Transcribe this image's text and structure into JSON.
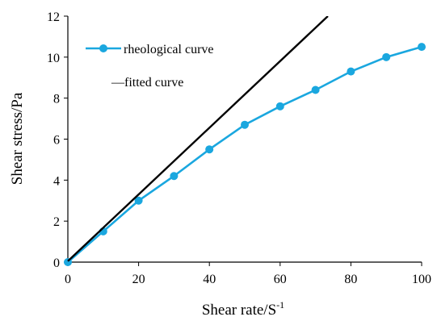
{
  "chart_data": {
    "type": "line",
    "xlabel": "Shear rate/S",
    "xlabel_sup": "-1",
    "ylabel": "Shear stress/Pa",
    "xlim": [
      0,
      100
    ],
    "ylim": [
      0,
      12
    ],
    "x_ticks": [
      0,
      20,
      40,
      60,
      80,
      100
    ],
    "y_ticks": [
      0,
      2,
      4,
      6,
      8,
      10,
      12
    ],
    "grid": false,
    "legend_position": "top-left",
    "series": [
      {
        "name": "rheological curve",
        "color": "#1aa7df",
        "marker": "circle",
        "x": [
          0,
          10,
          20,
          30,
          40,
          50,
          60,
          70,
          80,
          90,
          100
        ],
        "y": [
          0,
          1.5,
          3.0,
          4.2,
          5.5,
          6.7,
          7.6,
          8.4,
          9.3,
          10.0,
          10.5
        ]
      },
      {
        "name": "—fitted curve",
        "color": "#000000",
        "marker": "none",
        "x": [
          0,
          73.5
        ],
        "y": [
          0.05,
          12
        ]
      }
    ]
  }
}
